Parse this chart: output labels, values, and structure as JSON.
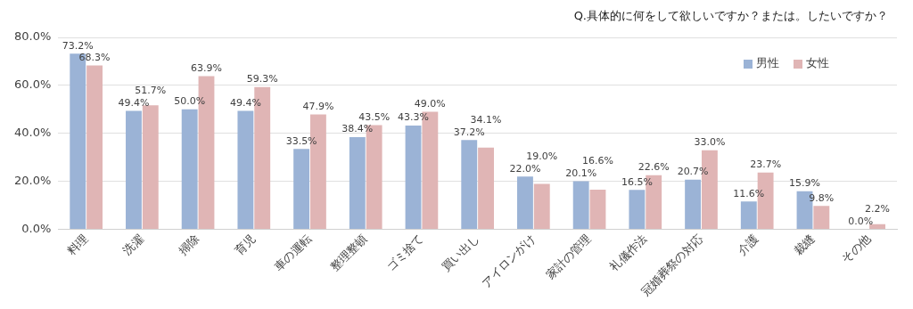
{
  "chart_data": {
    "type": "bar",
    "annotations": [
      "Q.具体的に何をして欲しいですか？または。したいですか？"
    ],
    "categories": [
      "料理",
      "洗濯",
      "掃除",
      "育児",
      "車の運転",
      "整理整頓",
      "ゴミ捨て",
      "買い出し",
      "アイロンがけ",
      "家計の管理",
      "礼儀作法",
      "冠婚葬祭の対応",
      "介護",
      "裁縫",
      "その他"
    ],
    "series": [
      {
        "name": "男性",
        "color": "#9bb3d6",
        "values": [
          73.2,
          49.4,
          50.0,
          49.4,
          33.5,
          38.4,
          43.3,
          37.2,
          22.0,
          20.1,
          16.5,
          20.7,
          11.6,
          15.9,
          0.0
        ],
        "value_labels": [
          "73.2%",
          "49.4%",
          "50.0%",
          "49.4%",
          "33.5%",
          "38.4%",
          "43.3%",
          "37.2%",
          "22.0%",
          "20.1%",
          "16.5%",
          "20.7%",
          "11.6%",
          "15.9%",
          "0.0%"
        ]
      },
      {
        "name": "女性",
        "color": "#e0b5b5",
        "values": [
          68.3,
          51.7,
          63.9,
          59.3,
          47.9,
          43.5,
          49.0,
          34.1,
          19.0,
          16.6,
          22.6,
          33.0,
          23.7,
          9.8,
          2.2
        ],
        "value_labels": [
          "68.3%",
          "51.7%",
          "63.9%",
          "59.3%",
          "47.9%",
          "43.5%",
          "49.0%",
          "34.1%",
          "19.0%",
          "16.6%",
          "22.6%",
          "33.0%",
          "23.7%",
          "9.8%",
          "2.2%"
        ]
      }
    ],
    "ylim": [
      0,
      80
    ],
    "yticks": [
      {
        "value": 0,
        "label": "0.0%"
      },
      {
        "value": 20,
        "label": "20.0%"
      },
      {
        "value": 40,
        "label": "40.0%"
      },
      {
        "value": 60,
        "label": "60.0%"
      },
      {
        "value": 80,
        "label": "80.0%"
      }
    ],
    "grid": "y",
    "legend": "top right"
  }
}
